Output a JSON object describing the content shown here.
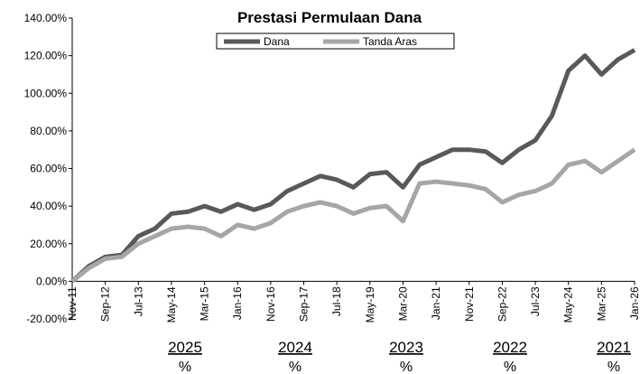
{
  "chart_data": {
    "type": "line",
    "title": "Prestasi Permulaan Dana",
    "categories": [
      "Nov-11",
      null,
      "Sep-12",
      null,
      "Jul-13",
      null,
      "May-14",
      null,
      "Mar-15",
      null,
      "Jan-16",
      null,
      "Nov-16",
      null,
      "Sep-17",
      null,
      "Jul-18",
      null,
      "May-19",
      null,
      "Mar-20",
      null,
      "Jan-21",
      null,
      "Nov-21",
      null,
      "Sep-22",
      null,
      "Jul-23",
      null,
      "May-24",
      null,
      "Mar-25",
      null,
      "Jan-26"
    ],
    "series": [
      {
        "name": "Dana",
        "color": "#595959",
        "values": [
          0,
          8,
          13,
          14,
          24,
          28,
          36,
          37,
          40,
          37,
          41,
          38,
          41,
          48,
          52,
          56,
          54,
          50,
          57,
          58,
          50,
          62,
          66,
          70,
          70,
          69,
          63,
          70,
          75,
          88,
          112,
          120,
          110,
          118,
          123
        ]
      },
      {
        "name": "Tanda Aras",
        "color": "#a6a6a6",
        "values": [
          0,
          7,
          12,
          13,
          20,
          24,
          28,
          29,
          28,
          24,
          30,
          28,
          31,
          37,
          40,
          42,
          40,
          36,
          39,
          40,
          32,
          52,
          53,
          52,
          51,
          49,
          42,
          46,
          48,
          52,
          62,
          64,
          58,
          64,
          70
        ]
      }
    ],
    "ylim": [
      -20,
      140
    ],
    "yticks": [
      {
        "value": -20,
        "label": "-20.00%"
      },
      {
        "value": 0,
        "label": "0.00%"
      },
      {
        "value": 20,
        "label": "20.00%"
      },
      {
        "value": 40,
        "label": "40.00%"
      },
      {
        "value": 60,
        "label": "60.00%"
      },
      {
        "value": 80,
        "label": "80.00%"
      },
      {
        "value": 100,
        "label": "100.00%"
      },
      {
        "value": 120,
        "label": "120.00%"
      },
      {
        "value": 140,
        "label": "140.00%"
      }
    ],
    "legend": "top",
    "annotations": [
      {
        "text": "2025",
        "sub": "%"
      },
      {
        "text": "2024",
        "sub": "%"
      },
      {
        "text": "2023",
        "sub": "%"
      },
      {
        "text": "2022",
        "sub": "%"
      },
      {
        "text": "2021",
        "sub": "%"
      }
    ]
  }
}
